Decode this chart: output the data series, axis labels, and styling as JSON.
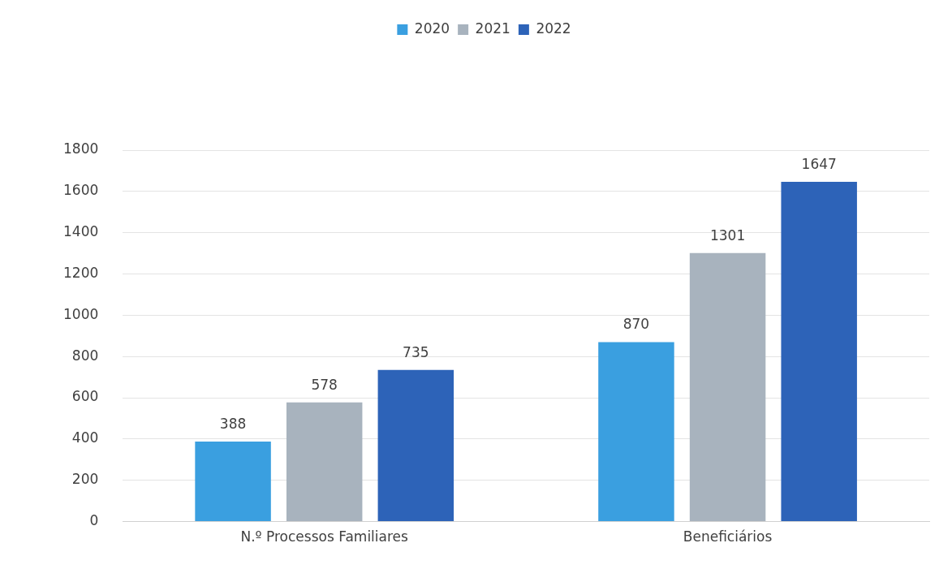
{
  "chart_data": {
    "type": "bar",
    "categories": [
      "N.º Processos Familiares",
      "Beneficiários"
    ],
    "series": [
      {
        "name": "2020",
        "color": "#3a9fe0",
        "values": [
          388,
          870
        ]
      },
      {
        "name": "2021",
        "color": "#a8b3be",
        "values": [
          578,
          1301
        ]
      },
      {
        "name": "2022",
        "color": "#2d63b8",
        "values": [
          735,
          1647
        ]
      }
    ],
    "ylim": [
      0,
      1800
    ],
    "yticks": [
      0,
      200,
      400,
      600,
      800,
      1000,
      1200,
      1400,
      1600,
      1800
    ],
    "grid": "y",
    "legend": "top",
    "data_labels": true
  }
}
